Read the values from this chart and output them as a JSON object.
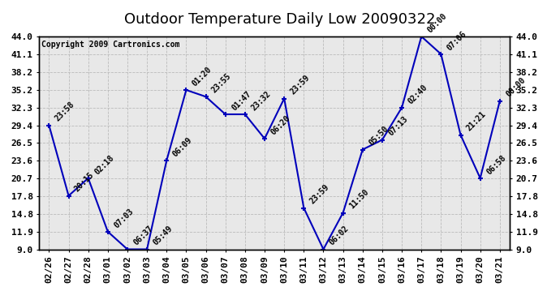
{
  "title": "Outdoor Temperature Daily Low 20090322",
  "copyright": "Copyright 2009 Cartronics.com",
  "x_labels": [
    "02/26",
    "02/27",
    "02/28",
    "03/01",
    "03/02",
    "03/03",
    "03/04",
    "03/05",
    "03/06",
    "03/07",
    "03/08",
    "03/09",
    "03/10",
    "03/11",
    "03/12",
    "03/13",
    "03/14",
    "03/15",
    "03/16",
    "03/17",
    "03/18",
    "03/19",
    "03/20",
    "03/21"
  ],
  "y_values": [
    29.4,
    17.8,
    20.7,
    11.9,
    9.0,
    9.0,
    23.6,
    35.2,
    34.1,
    31.2,
    31.2,
    27.2,
    33.8,
    15.8,
    9.0,
    15.0,
    25.4,
    27.0,
    32.3,
    44.0,
    41.1,
    27.8,
    20.7,
    33.4
  ],
  "point_labels": [
    "23:58",
    "20:15",
    "02:18",
    "07:03",
    "06:37",
    "05:49",
    "06:09",
    "01:20",
    "23:55",
    "01:47",
    "23:32",
    "06:20",
    "23:59",
    "23:59",
    "06:02",
    "11:50",
    "05:50",
    "07:13",
    "02:40",
    "00:00",
    "07:06",
    "21:21",
    "06:58",
    "00:00"
  ],
  "y_ticks": [
    9.0,
    11.9,
    14.8,
    17.8,
    20.7,
    23.6,
    26.5,
    29.4,
    32.3,
    35.2,
    38.2,
    41.1,
    44.0
  ],
  "y_tick_labels": [
    "9.0",
    "11.9",
    "14.8",
    "17.8",
    "20.7",
    "23.6",
    "26.5",
    "29.4",
    "32.3",
    "35.2",
    "38.2",
    "41.1",
    "44.0"
  ],
  "ylim": [
    9.0,
    44.0
  ],
  "line_color": "#0000bb",
  "bg_color": "#ffffff",
  "plot_bg_color": "#e8e8e8",
  "grid_color": "#bbbbbb",
  "title_fontsize": 13,
  "tick_fontsize": 8,
  "annotation_fontsize": 7,
  "copyright_fontsize": 7
}
